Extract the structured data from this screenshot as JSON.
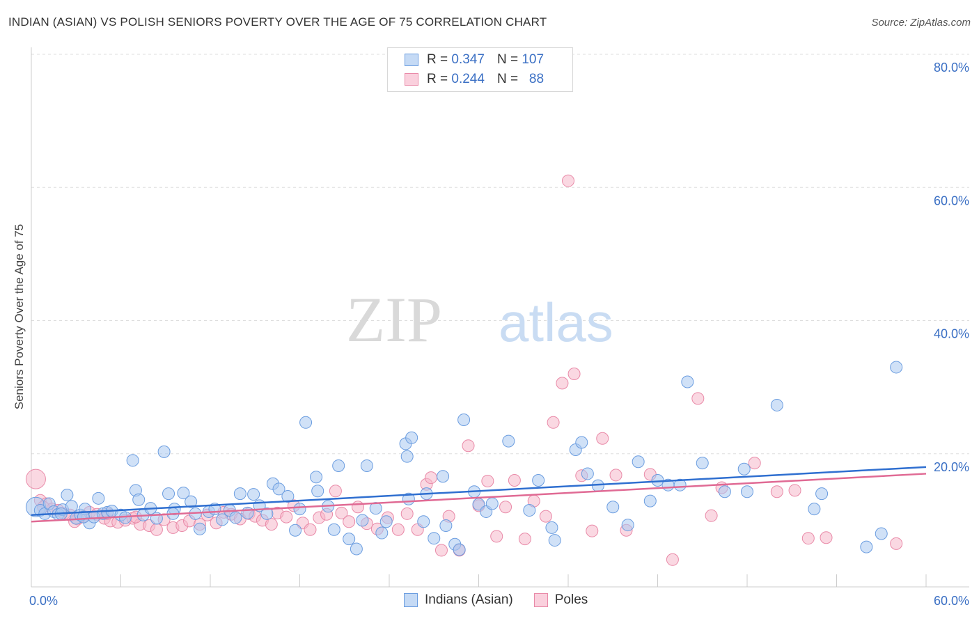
{
  "title": "INDIAN (ASIAN) VS POLISH SENIORS POVERTY OVER THE AGE OF 75 CORRELATION CHART",
  "source": "Source: ZipAtlas.com",
  "watermark": {
    "zip": "ZIP",
    "atlas": "atlas"
  },
  "legend": {
    "series1": {
      "r_label": "R =",
      "r_value": "0.347",
      "n_label": "N =",
      "n_value": "107"
    },
    "series2": {
      "r_label": "R =",
      "r_value": "0.244",
      "n_label": "N =",
      "n_value": "88"
    }
  },
  "colors": {
    "blue_fill": "#a9c8f0",
    "blue_stroke": "#6b9de0",
    "blue_line": "#2f6fd0",
    "pink_fill": "#f6b8cb",
    "pink_stroke": "#e98aa8",
    "pink_line": "#e06a94",
    "tick_text": "#3a6fc4",
    "grid": "#dddddd"
  },
  "chart_data": {
    "type": "scatter",
    "title": "INDIAN (ASIAN) VS POLISH SENIORS POVERTY OVER THE AGE OF 75 CORRELATION CHART",
    "xlabel": "",
    "ylabel": "Seniors Poverty Over the Age of 75",
    "xlim": [
      0,
      60
    ],
    "ylim": [
      0,
      80
    ],
    "x_ticks": [
      "0.0%",
      "60.0%"
    ],
    "y_ticks": [
      {
        "value": 20,
        "label": "20.0%"
      },
      {
        "value": 40,
        "label": "40.0%"
      },
      {
        "value": 60,
        "label": "60.0%"
      },
      {
        "value": 80,
        "label": "80.0%"
      }
    ],
    "grid": true,
    "legend_position": "bottom-center",
    "series": [
      {
        "name": "Indians (Asian)",
        "trend": {
          "x0": 0,
          "y0": 10.8,
          "x1": 60,
          "y1": 18.0
        },
        "points": [
          [
            0.3,
            12.0
          ],
          [
            0.6,
            11.5
          ],
          [
            0.9,
            11.0
          ],
          [
            1.2,
            12.5
          ],
          [
            1.5,
            11.3
          ],
          [
            1.8,
            10.9
          ],
          [
            2.1,
            11.6
          ],
          [
            2.4,
            13.8
          ],
          [
            2.7,
            12.1
          ],
          [
            3.0,
            10.3
          ],
          [
            3.3,
            10.8
          ],
          [
            3.6,
            11.7
          ],
          [
            3.9,
            9.6
          ],
          [
            4.2,
            10.5
          ],
          [
            4.5,
            13.3
          ],
          [
            4.8,
            11.0
          ],
          [
            5.1,
            11.2
          ],
          [
            5.4,
            11.4
          ],
          [
            6.0,
            10.8
          ],
          [
            6.3,
            10.4
          ],
          [
            7.0,
            14.5
          ],
          [
            7.2,
            13.1
          ],
          [
            7.5,
            10.8
          ],
          [
            8.0,
            11.8
          ],
          [
            8.4,
            10.3
          ],
          [
            8.9,
            20.3
          ],
          [
            9.2,
            14.0
          ],
          [
            9.6,
            11.7
          ],
          [
            10.2,
            14.1
          ],
          [
            10.7,
            12.8
          ],
          [
            11.0,
            11.0
          ],
          [
            11.3,
            8.7
          ],
          [
            11.9,
            11.3
          ],
          [
            12.3,
            11.7
          ],
          [
            12.8,
            10.1
          ],
          [
            13.3,
            11.5
          ],
          [
            13.7,
            10.4
          ],
          [
            14.0,
            14.0
          ],
          [
            14.5,
            11.1
          ],
          [
            14.9,
            13.9
          ],
          [
            15.3,
            12.2
          ],
          [
            15.8,
            11.0
          ],
          [
            16.2,
            15.5
          ],
          [
            16.6,
            14.7
          ],
          [
            17.2,
            13.6
          ],
          [
            17.7,
            8.5
          ],
          [
            18.0,
            11.7
          ],
          [
            18.4,
            24.7
          ],
          [
            19.1,
            16.5
          ],
          [
            19.2,
            14.4
          ],
          [
            19.9,
            12.1
          ],
          [
            20.3,
            8.6
          ],
          [
            20.6,
            18.2
          ],
          [
            21.3,
            7.2
          ],
          [
            21.8,
            5.7
          ],
          [
            22.2,
            10.0
          ],
          [
            22.5,
            18.2
          ],
          [
            23.1,
            11.8
          ],
          [
            23.5,
            8.1
          ],
          [
            23.8,
            9.8
          ],
          [
            25.1,
            21.5
          ],
          [
            25.2,
            19.6
          ],
          [
            25.3,
            13.2
          ],
          [
            25.5,
            22.4
          ],
          [
            26.3,
            9.8
          ],
          [
            26.5,
            14.0
          ],
          [
            27.0,
            7.3
          ],
          [
            27.6,
            16.6
          ],
          [
            27.8,
            9.2
          ],
          [
            28.4,
            6.4
          ],
          [
            28.7,
            5.6
          ],
          [
            29.0,
            25.1
          ],
          [
            29.7,
            14.3
          ],
          [
            30.0,
            12.4
          ],
          [
            30.5,
            11.3
          ],
          [
            30.9,
            12.5
          ],
          [
            32.0,
            21.9
          ],
          [
            33.4,
            11.5
          ],
          [
            34.0,
            16.0
          ],
          [
            34.9,
            8.9
          ],
          [
            35.1,
            7.0
          ],
          [
            36.5,
            20.6
          ],
          [
            36.9,
            21.7
          ],
          [
            37.3,
            17.0
          ],
          [
            38.0,
            15.2
          ],
          [
            39.0,
            12.0
          ],
          [
            40.0,
            9.3
          ],
          [
            40.7,
            18.8
          ],
          [
            41.5,
            12.9
          ],
          [
            42.0,
            16.0
          ],
          [
            42.7,
            15.3
          ],
          [
            43.5,
            15.3
          ],
          [
            44.0,
            30.8
          ],
          [
            45.0,
            18.6
          ],
          [
            46.5,
            14.3
          ],
          [
            47.8,
            17.7
          ],
          [
            48.0,
            14.3
          ],
          [
            50.0,
            27.3
          ],
          [
            52.5,
            11.7
          ],
          [
            53.0,
            14.0
          ],
          [
            56.0,
            6.0
          ],
          [
            57.0,
            8.0
          ],
          [
            58.0,
            33.0
          ],
          [
            2.0,
            11.0
          ],
          [
            3.5,
            10.5
          ],
          [
            6.8,
            19.0
          ],
          [
            9.5,
            11.0
          ]
        ]
      },
      {
        "name": "Poles",
        "trend": {
          "x0": 0,
          "y0": 9.8,
          "x1": 60,
          "y1": 17.0
        },
        "points": [
          [
            0.3,
            16.2
          ],
          [
            0.6,
            13.0
          ],
          [
            1.0,
            12.5
          ],
          [
            1.4,
            11.7
          ],
          [
            1.8,
            11.5
          ],
          [
            2.2,
            11.0
          ],
          [
            2.6,
            10.8
          ],
          [
            3.1,
            10.2
          ],
          [
            3.5,
            10.6
          ],
          [
            3.9,
            11.2
          ],
          [
            4.4,
            10.9
          ],
          [
            4.9,
            10.3
          ],
          [
            5.3,
            9.9
          ],
          [
            5.8,
            9.7
          ],
          [
            6.3,
            10.0
          ],
          [
            6.8,
            10.3
          ],
          [
            7.3,
            9.4
          ],
          [
            7.9,
            9.2
          ],
          [
            8.4,
            8.6
          ],
          [
            8.9,
            10.1
          ],
          [
            9.5,
            8.9
          ],
          [
            10.1,
            9.2
          ],
          [
            10.6,
            9.9
          ],
          [
            11.3,
            9.4
          ],
          [
            11.8,
            10.8
          ],
          [
            12.4,
            9.6
          ],
          [
            12.9,
            11.2
          ],
          [
            13.4,
            10.9
          ],
          [
            14.0,
            10.2
          ],
          [
            14.6,
            11.0
          ],
          [
            15.0,
            10.6
          ],
          [
            15.5,
            10.0
          ],
          [
            16.1,
            9.4
          ],
          [
            16.5,
            11.1
          ],
          [
            17.1,
            10.5
          ],
          [
            17.6,
            12.2
          ],
          [
            18.2,
            9.6
          ],
          [
            18.7,
            8.6
          ],
          [
            19.3,
            10.4
          ],
          [
            19.8,
            10.9
          ],
          [
            20.4,
            14.4
          ],
          [
            20.8,
            11.1
          ],
          [
            21.3,
            9.8
          ],
          [
            21.9,
            12.0
          ],
          [
            22.5,
            9.5
          ],
          [
            23.2,
            8.7
          ],
          [
            23.9,
            10.4
          ],
          [
            24.6,
            8.6
          ],
          [
            25.2,
            11.0
          ],
          [
            25.9,
            8.6
          ],
          [
            26.5,
            15.4
          ],
          [
            26.8,
            16.4
          ],
          [
            27.5,
            5.5
          ],
          [
            28.0,
            10.6
          ],
          [
            28.7,
            5.5
          ],
          [
            29.3,
            21.2
          ],
          [
            30.0,
            12.2
          ],
          [
            30.6,
            15.9
          ],
          [
            31.2,
            7.6
          ],
          [
            31.8,
            12.0
          ],
          [
            32.4,
            16.0
          ],
          [
            33.1,
            7.2
          ],
          [
            33.7,
            12.9
          ],
          [
            34.5,
            10.6
          ],
          [
            35.0,
            24.7
          ],
          [
            35.6,
            30.6
          ],
          [
            36.4,
            32.0
          ],
          [
            36.9,
            16.7
          ],
          [
            37.6,
            8.4
          ],
          [
            38.3,
            22.3
          ],
          [
            39.2,
            16.8
          ],
          [
            39.9,
            8.5
          ],
          [
            41.5,
            16.9
          ],
          [
            43.0,
            4.1
          ],
          [
            44.7,
            28.3
          ],
          [
            45.6,
            10.7
          ],
          [
            46.3,
            14.9
          ],
          [
            48.5,
            18.6
          ],
          [
            50.0,
            14.3
          ],
          [
            51.2,
            14.5
          ],
          [
            52.1,
            7.3
          ],
          [
            53.3,
            7.4
          ],
          [
            58.0,
            6.5
          ],
          [
            0.8,
            12.0
          ],
          [
            2.9,
            9.8
          ],
          [
            5.1,
            11.0
          ],
          [
            7.0,
            10.5
          ],
          [
            36.0,
            61.0
          ]
        ]
      }
    ]
  }
}
